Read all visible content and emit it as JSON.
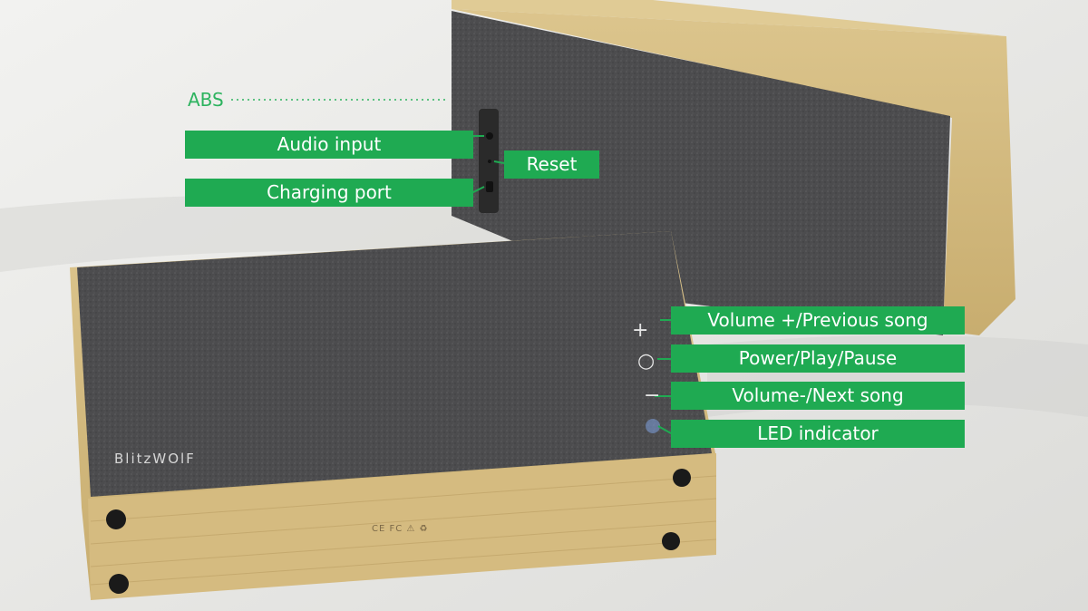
{
  "image": {
    "description_colors": {
      "background": "#e8e8e6",
      "fabric": "#4d4d4f",
      "bamboo": "#d7bf86",
      "label_green": "#1faa52"
    }
  },
  "labels": {
    "abs": "ABS",
    "audio_input": "Audio input",
    "reset": "Reset",
    "charging_port": "Charging port",
    "volume_up": "Volume +/Previous song",
    "power": "Power/Play/Pause",
    "volume_down": "Volume-/Next song",
    "led": "LED indicator"
  },
  "product": {
    "brand": "BlitzWolf",
    "brand_display": "BlitzWOlF",
    "certification_marks": "CE FC ⚠ ♻"
  },
  "controls": {
    "plus": "+",
    "power": "○",
    "minus": "−"
  }
}
